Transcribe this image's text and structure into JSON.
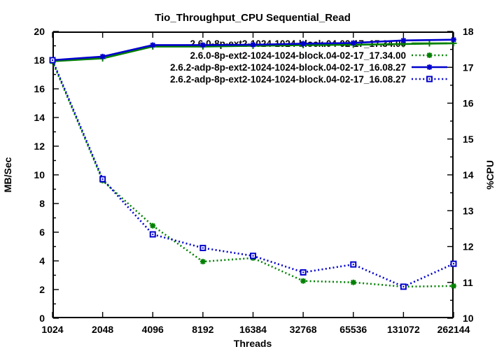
{
  "chart_data": {
    "type": "line",
    "title": "Tio_Throughput_CPU Sequential_Read",
    "xlabel": "Threads",
    "ylabel_left": "MB/Sec",
    "ylabel_right": "%CPU",
    "x_scale": "log2",
    "x_categories": [
      "1024",
      "2048",
      "4096",
      "8192",
      "16384",
      "32768",
      "65536",
      "131072",
      "262144"
    ],
    "left_axis": {
      "min": 0,
      "max": 20,
      "major_step": 2,
      "minor_step": 1,
      "ticks": [
        "0",
        "2",
        "4",
        "6",
        "8",
        "10",
        "12",
        "14",
        "16",
        "18",
        "20"
      ]
    },
    "right_axis": {
      "min": 10,
      "max": 18,
      "major_step": 1,
      "minor_step": 0.5,
      "ticks": [
        "10",
        "11",
        "12",
        "13",
        "14",
        "15",
        "16",
        "17",
        "18"
      ]
    },
    "grid": false,
    "legend_position": "top-right-inside",
    "colors": {
      "green": "#008000",
      "blue": "#0000cd",
      "frame": "#000000",
      "background": "#ffffff"
    },
    "series": [
      {
        "name": "2.6.0-8p-ext2-1024-1024-block.04-02-17_17.34.00",
        "axis": "right",
        "metric": "%CPU",
        "color": "#008000",
        "line": "solid",
        "marker": "plus",
        "values": [
          17.17,
          17.25,
          17.58,
          17.58,
          17.6,
          17.62,
          17.63,
          17.65,
          17.67
        ]
      },
      {
        "name": "2.6.0-8p-ext2-1024-1024-block.04-02-17_17.34.00",
        "axis": "left",
        "metric": "MB/Sec",
        "color": "#008000",
        "line": "dotted",
        "marker": "asterisk",
        "values": [
          17.9,
          9.6,
          6.45,
          3.95,
          4.2,
          2.6,
          2.5,
          2.2,
          2.25
        ]
      },
      {
        "name": "2.6.2-adp-8p-ext2-1024-1024-block.04-02-17_16.08.27",
        "axis": "right",
        "metric": "%CPU",
        "color": "#0000cd",
        "line": "solid",
        "marker": "asterisk",
        "values": [
          17.2,
          17.3,
          17.62,
          17.62,
          17.63,
          17.66,
          17.68,
          17.75,
          17.77
        ]
      },
      {
        "name": "2.6.2-adp-8p-ext2-1024-1024-block.04-02-17_16.08.27",
        "axis": "left",
        "metric": "MB/Sec",
        "color": "#0000cd",
        "line": "dotted",
        "marker": "square",
        "values": [
          18.0,
          9.7,
          5.85,
          4.9,
          4.35,
          3.2,
          3.75,
          2.2,
          3.8
        ]
      }
    ]
  }
}
